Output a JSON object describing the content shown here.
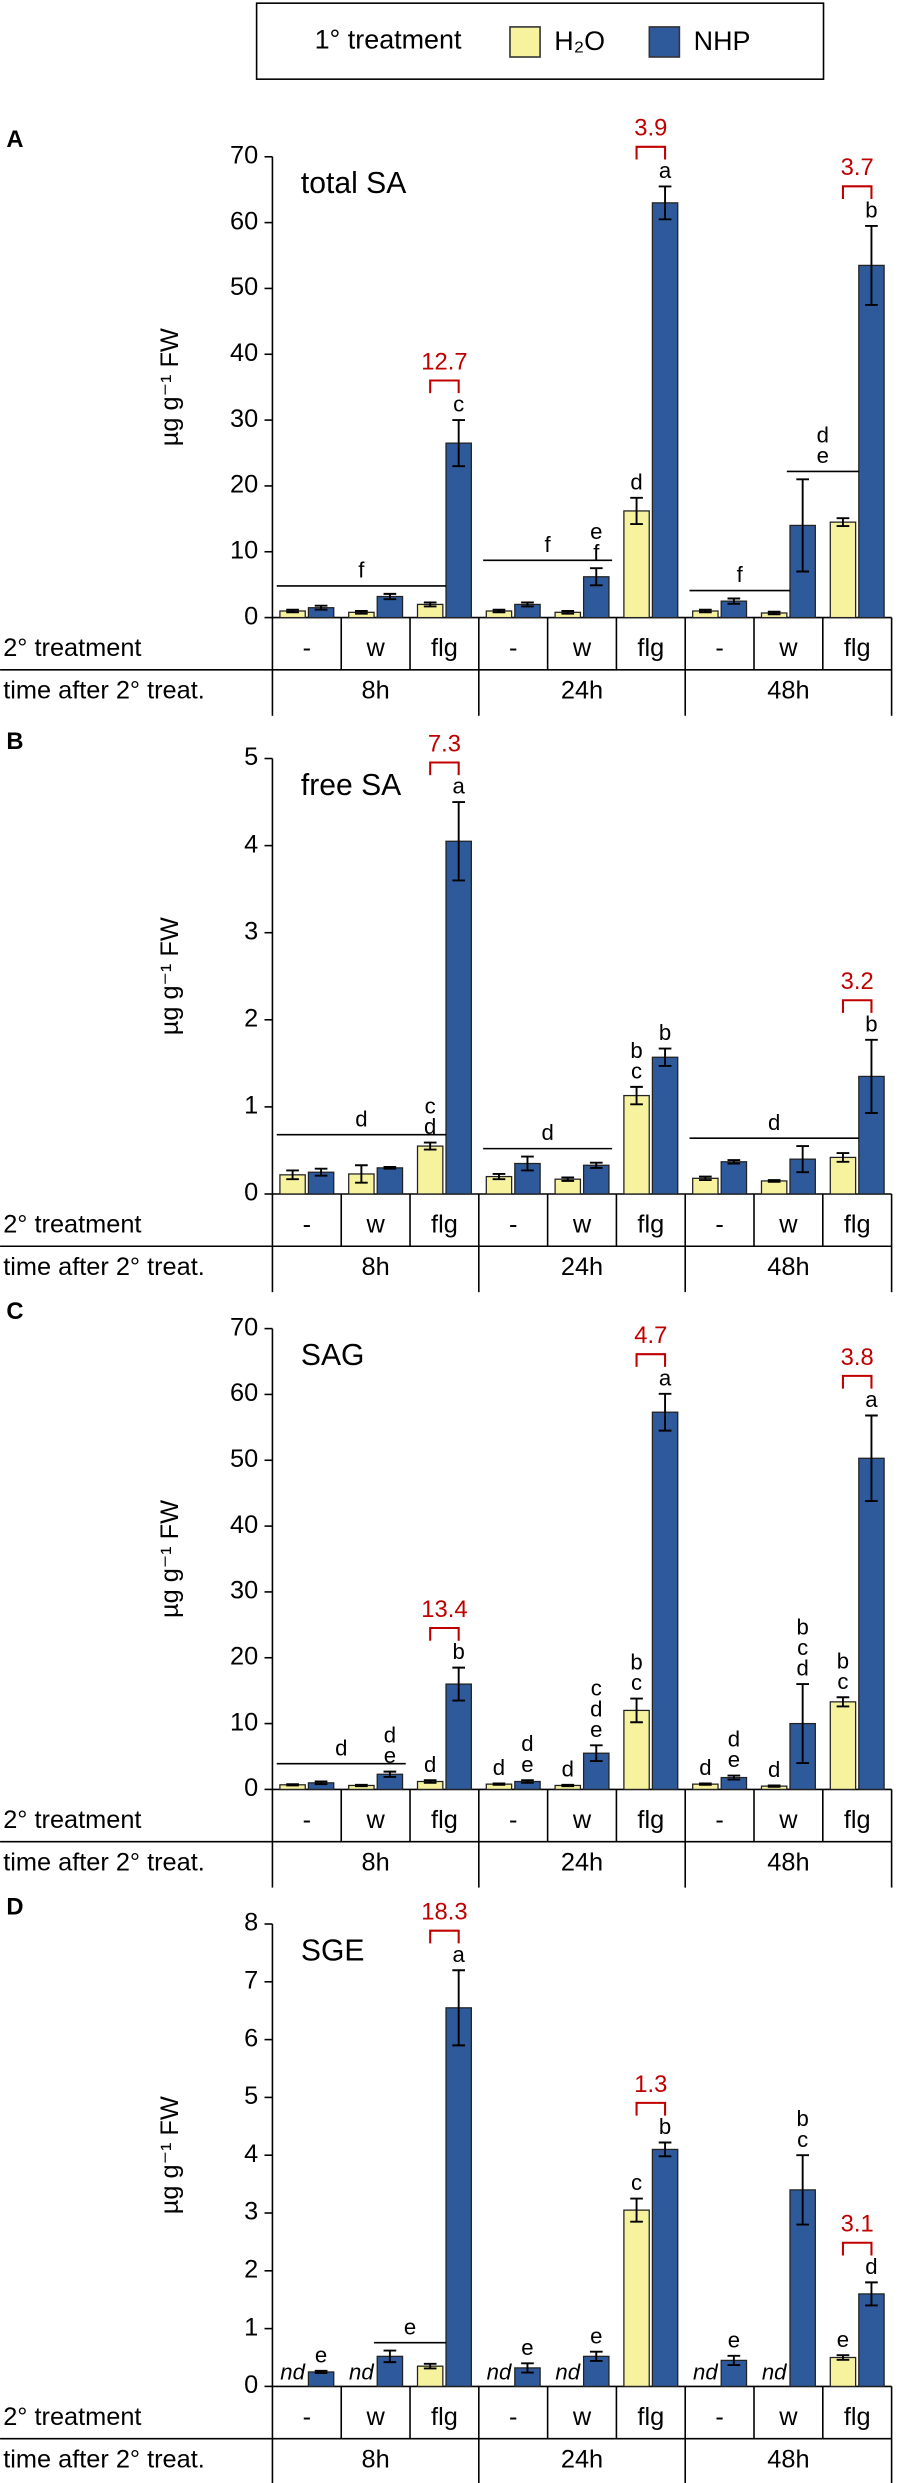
{
  "legend_title": "1° treatment",
  "chart_data": [
    {
      "type": "bar",
      "panel": "A",
      "title": "total SA",
      "ylabel": "µg g⁻¹ FW",
      "row_labels": [
        "2° treatment",
        "time after 2° treat."
      ],
      "categories": [
        "-",
        "w",
        "flg",
        "-",
        "w",
        "flg",
        "-",
        "w",
        "flg"
      ],
      "groups": [
        "8h",
        "24h",
        "48h"
      ],
      "ylim": [
        0,
        70
      ],
      "yticks": [
        0,
        10,
        20,
        30,
        40,
        50,
        60,
        70
      ],
      "series": [
        {
          "name": "H₂O",
          "color": "#f7f29e",
          "values": [
            1,
            0.8,
            2,
            1,
            0.8,
            16.2,
            1,
            0.7,
            14.5
          ],
          "errors": [
            0.2,
            0.2,
            0.3,
            0.2,
            0.2,
            2,
            0.2,
            0.2,
            0.6
          ]
        },
        {
          "name": "NHP",
          "color": "#2e5a9c",
          "values": [
            1.5,
            3.2,
            26.5,
            2,
            6.2,
            63,
            2.5,
            14,
            53.5
          ],
          "errors": [
            0.3,
            0.4,
            3.5,
            0.3,
            1.3,
            2.5,
            0.4,
            7,
            6
          ]
        }
      ],
      "letters": [
        {
          "lines": [
            "f"
          ],
          "bars": [
            0,
            4
          ]
        },
        {
          "lines": [
            "c"
          ],
          "bars": [
            5,
            5
          ]
        },
        {
          "lines": [
            "f"
          ],
          "bars": [
            6,
            9
          ]
        },
        {
          "lines": [
            "e",
            "f"
          ],
          "bars": [
            9,
            9
          ]
        },
        {
          "lines": [
            "d"
          ],
          "bars": [
            10,
            10
          ]
        },
        {
          "lines": [
            "a"
          ],
          "bars": [
            11,
            11
          ]
        },
        {
          "lines": [
            "f"
          ],
          "bars": [
            12,
            14
          ]
        },
        {
          "lines": [
            "d",
            "e"
          ],
          "bars": [
            15,
            16
          ]
        },
        {
          "lines": [
            "b"
          ],
          "bars": [
            17,
            17
          ]
        }
      ],
      "folds": [
        {
          "label": "12.7",
          "bars": [
            4,
            5
          ]
        },
        {
          "label": "3.9",
          "bars": [
            10,
            11
          ]
        },
        {
          "label": "3.7",
          "bars": [
            16,
            17
          ]
        }
      ]
    },
    {
      "type": "bar",
      "panel": "B",
      "title": "free SA",
      "ylabel": "µg g⁻¹ FW",
      "row_labels": [
        "2° treatment",
        "time after 2° treat."
      ],
      "categories": [
        "-",
        "w",
        "flg",
        "-",
        "w",
        "flg",
        "-",
        "w",
        "flg"
      ],
      "groups": [
        "8h",
        "24h",
        "48h"
      ],
      "ylim": [
        0,
        5
      ],
      "yticks": [
        0,
        1,
        2,
        3,
        4,
        5
      ],
      "series": [
        {
          "name": "H₂O",
          "color": "#f7f29e",
          "values": [
            0.22,
            0.23,
            0.55,
            0.2,
            0.17,
            1.13,
            0.18,
            0.15,
            0.42
          ],
          "errors": [
            0.05,
            0.1,
            0.04,
            0.03,
            0.02,
            0.1,
            0.02,
            0.01,
            0.05
          ]
        },
        {
          "name": "NHP",
          "color": "#2e5a9c",
          "values": [
            0.25,
            0.3,
            4.05,
            0.35,
            0.33,
            1.57,
            0.37,
            0.4,
            1.35
          ],
          "errors": [
            0.04,
            0.01,
            0.45,
            0.08,
            0.03,
            0.1,
            0.02,
            0.15,
            0.42
          ]
        }
      ],
      "letters": [
        {
          "lines": [
            "d"
          ],
          "bars": [
            0,
            4
          ]
        },
        {
          "lines": [
            "c",
            "d"
          ],
          "bars": [
            4,
            4
          ]
        },
        {
          "lines": [
            "a"
          ],
          "bars": [
            5,
            5
          ]
        },
        {
          "lines": [
            "d"
          ],
          "bars": [
            6,
            9
          ]
        },
        {
          "lines": [
            "b",
            "c"
          ],
          "bars": [
            10,
            10
          ]
        },
        {
          "lines": [
            "b"
          ],
          "bars": [
            11,
            11
          ]
        },
        {
          "lines": [
            "d"
          ],
          "bars": [
            12,
            16
          ]
        },
        {
          "lines": [
            "b"
          ],
          "bars": [
            17,
            17
          ]
        }
      ],
      "folds": [
        {
          "label": "7.3",
          "bars": [
            4,
            5
          ]
        },
        {
          "label": "3.2",
          "bars": [
            16,
            17
          ]
        }
      ]
    },
    {
      "type": "bar",
      "panel": "C",
      "title": "SAG",
      "ylabel": "µg g⁻¹ FW",
      "row_labels": [
        "2° treatment",
        "time after 2° treat."
      ],
      "categories": [
        "-",
        "w",
        "flg",
        "-",
        "w",
        "flg",
        "-",
        "w",
        "flg"
      ],
      "groups": [
        "8h",
        "24h",
        "48h"
      ],
      "ylim": [
        0,
        70
      ],
      "yticks": [
        0,
        10,
        20,
        30,
        40,
        50,
        60,
        70
      ],
      "series": [
        {
          "name": "H₂O",
          "color": "#f7f29e",
          "values": [
            0.7,
            0.6,
            1.2,
            0.8,
            0.6,
            12,
            0.8,
            0.5,
            13.3
          ],
          "errors": [
            0.1,
            0.1,
            0.2,
            0.1,
            0.1,
            1.8,
            0.1,
            0.1,
            0.7
          ]
        },
        {
          "name": "NHP",
          "color": "#2e5a9c",
          "values": [
            1,
            2.3,
            16,
            1.2,
            5.5,
            57.3,
            1.8,
            10,
            50.3
          ],
          "errors": [
            0.2,
            0.4,
            2.5,
            0.2,
            1.2,
            2.8,
            0.3,
            6,
            6.5
          ]
        }
      ],
      "letters": [
        {
          "lines": [
            "d"
          ],
          "bars": [
            0,
            3
          ]
        },
        {
          "lines": [
            "d",
            "e"
          ],
          "bars": [
            3,
            3
          ]
        },
        {
          "lines": [
            "d"
          ],
          "bars": [
            4,
            4
          ]
        },
        {
          "lines": [
            "b"
          ],
          "bars": [
            5,
            5
          ]
        },
        {
          "lines": [
            "d"
          ],
          "bars": [
            6,
            6
          ]
        },
        {
          "lines": [
            "d",
            "e"
          ],
          "bars": [
            7,
            7
          ]
        },
        {
          "lines": [
            "d"
          ],
          "bars": [
            8,
            8
          ]
        },
        {
          "lines": [
            "c",
            "d",
            "e"
          ],
          "bars": [
            9,
            9
          ]
        },
        {
          "lines": [
            "b",
            "c"
          ],
          "bars": [
            10,
            10
          ]
        },
        {
          "lines": [
            "a"
          ],
          "bars": [
            11,
            11
          ]
        },
        {
          "lines": [
            "d"
          ],
          "bars": [
            12,
            12
          ]
        },
        {
          "lines": [
            "d",
            "e"
          ],
          "bars": [
            13,
            13
          ]
        },
        {
          "lines": [
            "d"
          ],
          "bars": [
            14,
            14
          ]
        },
        {
          "lines": [
            "b",
            "c",
            "d"
          ],
          "bars": [
            15,
            15
          ]
        },
        {
          "lines": [
            "b",
            "c"
          ],
          "bars": [
            16,
            16
          ]
        },
        {
          "lines": [
            "a"
          ],
          "bars": [
            17,
            17
          ]
        }
      ],
      "folds": [
        {
          "label": "13.4",
          "bars": [
            4,
            5
          ]
        },
        {
          "label": "4.7",
          "bars": [
            10,
            11
          ]
        },
        {
          "label": "3.8",
          "bars": [
            16,
            17
          ]
        }
      ]
    },
    {
      "type": "bar",
      "panel": "D",
      "title": "SGE",
      "ylabel": "µg g⁻¹ FW",
      "row_labels": [
        "2° treatment",
        "time after 2° treat."
      ],
      "categories": [
        "-",
        "w",
        "flg",
        "-",
        "w",
        "flg",
        "-",
        "w",
        "flg"
      ],
      "groups": [
        "8h",
        "24h",
        "48h"
      ],
      "ylim": [
        0,
        8
      ],
      "yticks": [
        0,
        1,
        2,
        3,
        4,
        5,
        6,
        7,
        8
      ],
      "series": [
        {
          "name": "H₂O",
          "color": "#f7f29e",
          "values": [
            null,
            null,
            0.35,
            null,
            null,
            3.05,
            null,
            null,
            0.5
          ],
          "value_labels": [
            "nd",
            "nd",
            null,
            "nd",
            "nd",
            null,
            "nd",
            "nd",
            null
          ],
          "errors": [
            null,
            null,
            0.04,
            null,
            null,
            0.2,
            null,
            null,
            0.04
          ]
        },
        {
          "name": "NHP",
          "color": "#2e5a9c",
          "values": [
            0.25,
            0.52,
            6.55,
            0.32,
            0.52,
            4.1,
            0.45,
            3.4,
            1.6
          ],
          "errors": [
            0.02,
            0.1,
            0.65,
            0.08,
            0.08,
            0.12,
            0.08,
            0.6,
            0.2
          ]
        }
      ],
      "letters": [
        {
          "lines": [
            "e"
          ],
          "bars": [
            1,
            1
          ]
        },
        {
          "lines": [
            "e"
          ],
          "bars": [
            3,
            4
          ]
        },
        {
          "lines": [
            "a"
          ],
          "bars": [
            5,
            5
          ]
        },
        {
          "lines": [
            "e"
          ],
          "bars": [
            7,
            7
          ]
        },
        {
          "lines": [
            "e"
          ],
          "bars": [
            9,
            9
          ]
        },
        {
          "lines": [
            "c"
          ],
          "bars": [
            10,
            10
          ]
        },
        {
          "lines": [
            "b"
          ],
          "bars": [
            11,
            11
          ]
        },
        {
          "lines": [
            "e"
          ],
          "bars": [
            13,
            13
          ]
        },
        {
          "lines": [
            "b",
            "c"
          ],
          "bars": [
            15,
            15
          ]
        },
        {
          "lines": [
            "e"
          ],
          "bars": [
            16,
            16
          ]
        },
        {
          "lines": [
            "d"
          ],
          "bars": [
            17,
            17
          ]
        }
      ],
      "folds": [
        {
          "label": "18.3",
          "bars": [
            4,
            5
          ]
        },
        {
          "label": "1.3",
          "bars": [
            10,
            11
          ]
        },
        {
          "label": "3.1",
          "bars": [
            16,
            17
          ]
        }
      ]
    }
  ]
}
